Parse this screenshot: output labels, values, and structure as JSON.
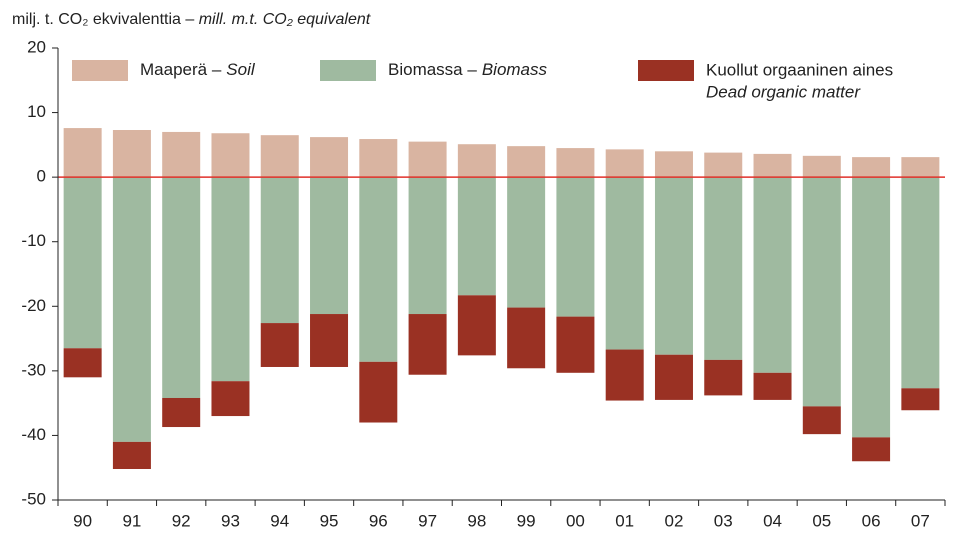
{
  "chart_data": {
    "type": "stacked_bar",
    "y_label": [
      "milj. t. CO₂ ekvivalenttia – ",
      "mill. m.t. CO₂  equivalent"
    ],
    "categories": [
      "90",
      "91",
      "92",
      "93",
      "94",
      "95",
      "96",
      "97",
      "98",
      "99",
      "00",
      "01",
      "02",
      "03",
      "04",
      "05",
      "06",
      "07"
    ],
    "series": [
      {
        "name": "Maaperä –",
        "name_en": "Soil",
        "color": "#d9b4a1",
        "values": [
          7.6,
          7.3,
          7.0,
          6.8,
          6.5,
          6.2,
          5.9,
          5.5,
          5.1,
          4.8,
          4.5,
          4.3,
          4.0,
          3.8,
          3.6,
          3.3,
          3.1,
          3.1
        ]
      },
      {
        "name": "Biomassa –",
        "name_en": "Biomass",
        "color": "#9fbaa0",
        "values": [
          -26.5,
          -41.0,
          -34.2,
          -31.6,
          -22.6,
          -21.2,
          -28.6,
          -21.2,
          -18.3,
          -20.2,
          -21.6,
          -26.7,
          -27.5,
          -28.3,
          -30.3,
          -35.5,
          -40.3,
          -32.7
        ]
      },
      {
        "name": "Kuollut orgaaninen aines",
        "name_en": "Dead organic matter",
        "color": "#9a3123",
        "values": [
          -4.5,
          -4.2,
          -4.5,
          -5.4,
          -6.8,
          -8.2,
          -9.4,
          -9.4,
          -9.3,
          -9.4,
          -8.7,
          -7.9,
          -7.0,
          -5.5,
          -4.2,
          -4.3,
          -3.7,
          -3.4
        ]
      }
    ],
    "ylim": [
      -50,
      20
    ],
    "yticks": [
      -50,
      -40,
      -30,
      -20,
      -10,
      0,
      10,
      20
    ],
    "zero_line_color": "#e0302a"
  }
}
